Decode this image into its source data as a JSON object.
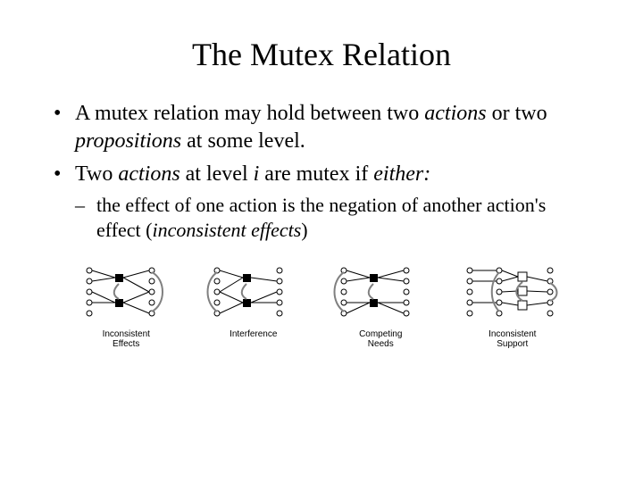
{
  "title": "The Mutex Relation",
  "bullets": [
    {
      "text": "A mutex relation may hold between two ",
      "em1": "actions",
      "mid1": " or two ",
      "em2": "propositions",
      "after": " at some level."
    },
    {
      "text": "Two ",
      "em1": "actions",
      "mid1": " at level ",
      "em2": "i",
      "after2": " are mutex if ",
      "em3": "either:"
    }
  ],
  "subbullet": {
    "text": "the effect of one action is the negation of another action's effect (",
    "em": "inconsistent effects",
    "after": ")"
  },
  "diagrams": [
    {
      "label": "Inconsistent\nEffects"
    },
    {
      "label": "Interference"
    },
    {
      "label": "Competing\nNeeds"
    },
    {
      "label": "Inconsistent\nSupport"
    }
  ],
  "styling": {
    "node_radius": 3,
    "node_stroke": "#000000",
    "node_fill": "#ffffff",
    "action_size": 9,
    "action_fill": "#000000",
    "edge_color": "#000000",
    "arc_color": "#808080",
    "arc_width": 2,
    "bg": "#ffffff"
  }
}
